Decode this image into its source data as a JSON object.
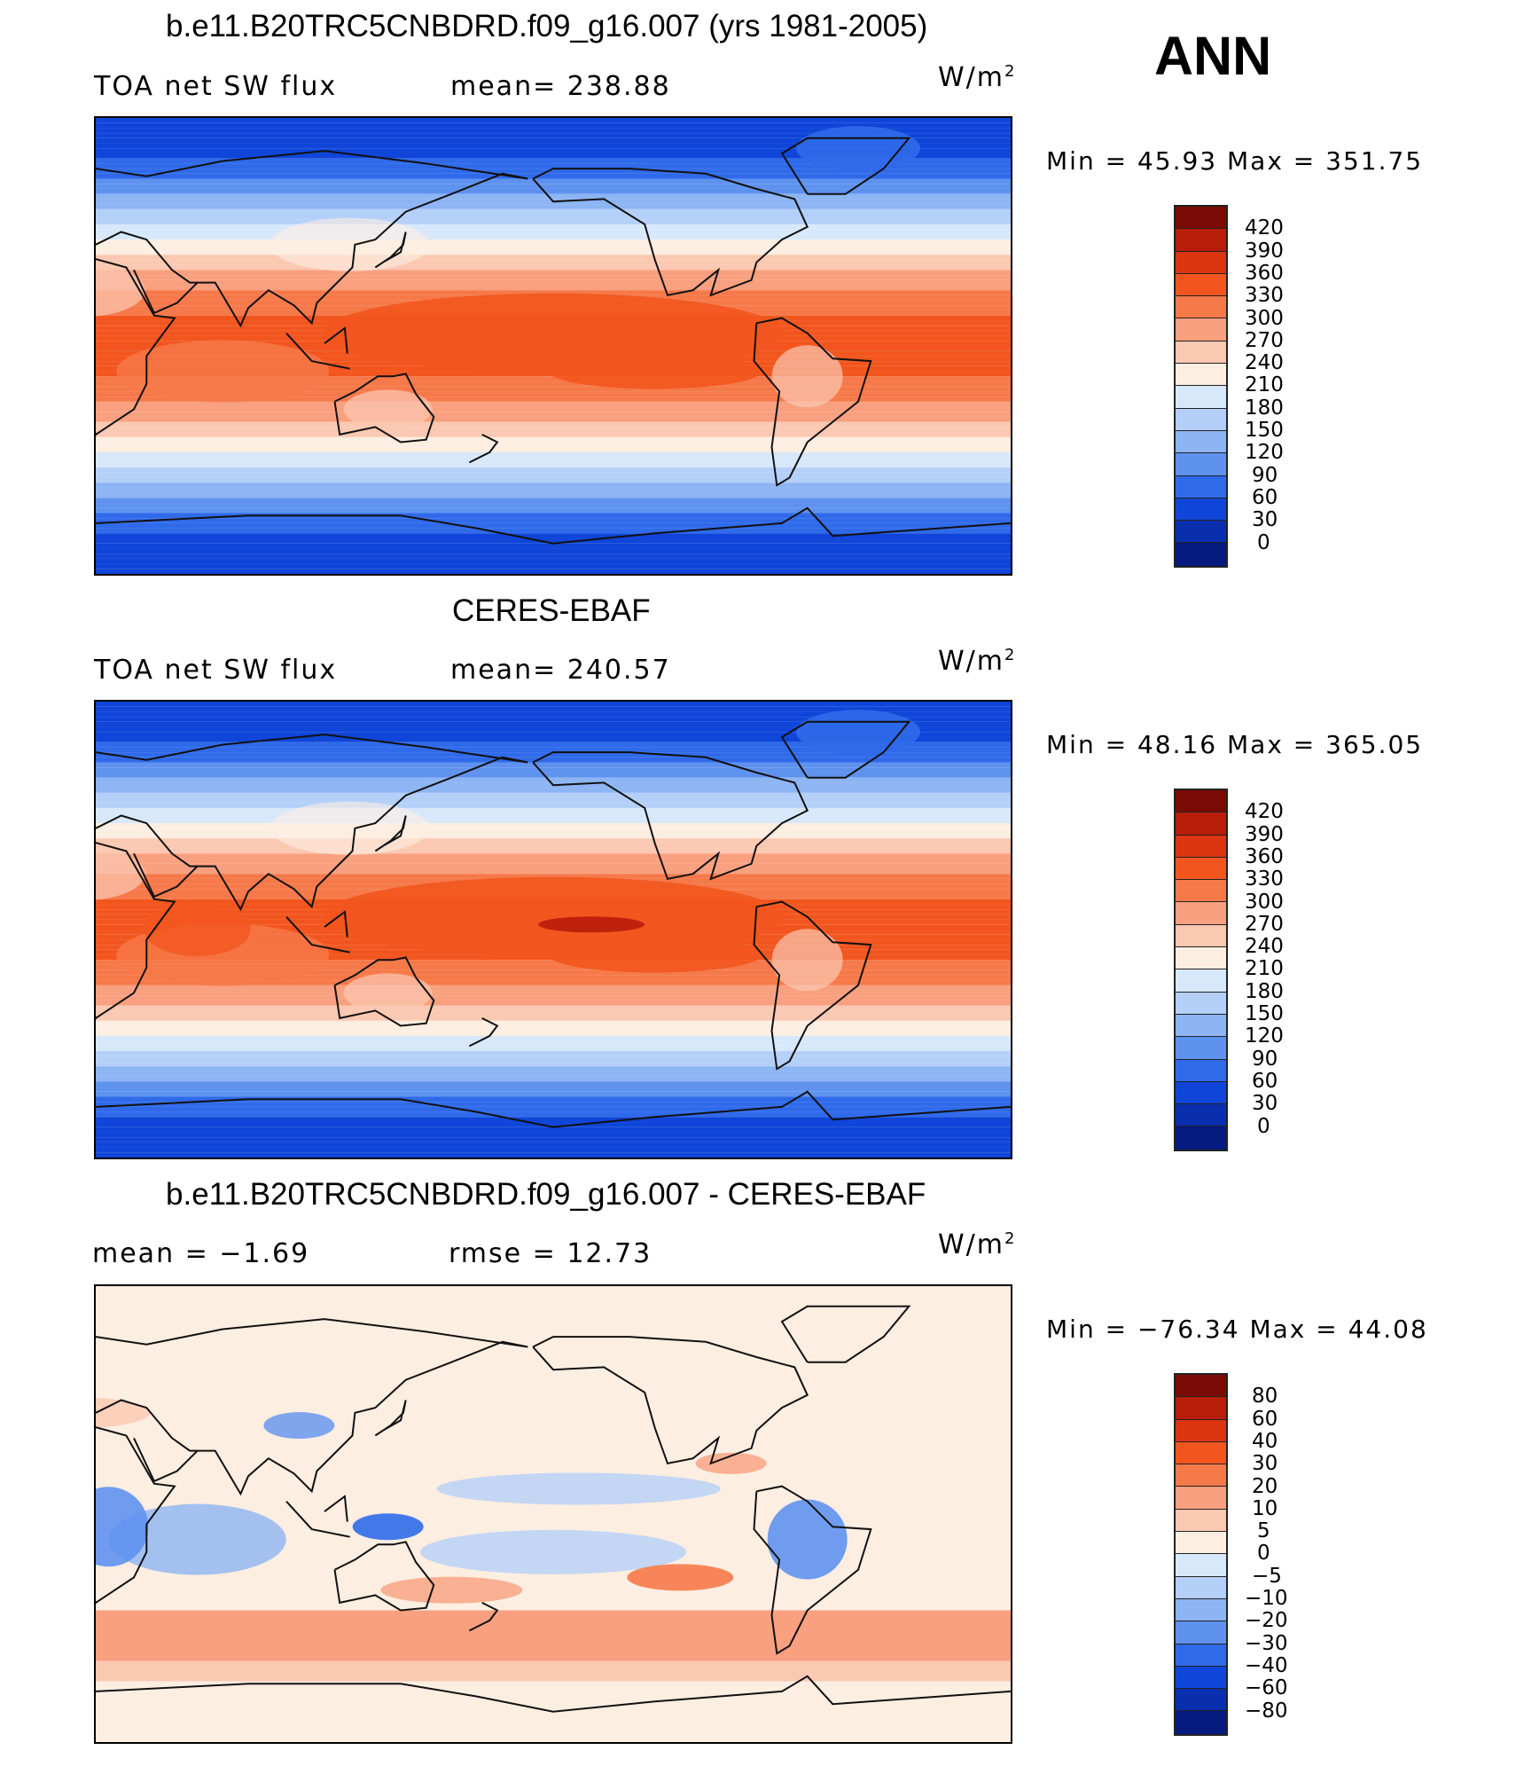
{
  "season": "ANN",
  "panels": [
    {
      "title": "b.e11.B20TRC5CNBDRD.f09_g16.007 (yrs 1981-2005)",
      "left_label": "TOA net SW flux",
      "mid_label": "mean= 238.88",
      "units": "W/m",
      "units_exp": "2",
      "minmax": "Min =  45.93 Max = 351.75",
      "field": "model"
    },
    {
      "title": "CERES-EBAF",
      "left_label": "TOA net SW flux",
      "mid_label": "mean= 240.57",
      "units": "W/m",
      "units_exp": "2",
      "minmax": "Min =  48.16 Max = 365.05",
      "field": "obs"
    },
    {
      "title": "b.e11.B20TRC5CNBDRD.f09_g16.007 - CERES-EBAF",
      "left_label": "mean =   −1.69",
      "mid_label": "rmse =   12.73",
      "units": "W/m",
      "units_exp": "2",
      "minmax": "Min = −76.34 Max =   44.08",
      "field": "diff"
    }
  ],
  "colorbars": {
    "absolute": {
      "levels": [
        "420",
        "390",
        "360",
        "330",
        "300",
        "270",
        "240",
        "210",
        "180",
        "150",
        "120",
        "90",
        "60",
        "30",
        "0"
      ],
      "colors": [
        "#7a0b06",
        "#b81d0a",
        "#dc3511",
        "#f2561e",
        "#f6794a",
        "#f8a07f",
        "#fbc8b2",
        "#fdeee2",
        "#d7e8fb",
        "#b4d0f8",
        "#8db4f3",
        "#5f92ef",
        "#2f6aea",
        "#0f45d8",
        "#0a2fae",
        "#071a80"
      ]
    },
    "difference": {
      "levels": [
        "80",
        "60",
        "40",
        "30",
        "20",
        "10",
        "5",
        "0",
        "−5",
        "−10",
        "−20",
        "−30",
        "−40",
        "−60",
        "−80"
      ],
      "colors": [
        "#7a0b06",
        "#b81d0a",
        "#dc3511",
        "#f2561e",
        "#f6794a",
        "#f8a07f",
        "#fbc8b2",
        "#fdeee2",
        "#d7e8fb",
        "#b4d0f8",
        "#8db4f3",
        "#5f92ef",
        "#2f6aea",
        "#0f45d8",
        "#0a2fae",
        "#071a80"
      ]
    }
  }
}
